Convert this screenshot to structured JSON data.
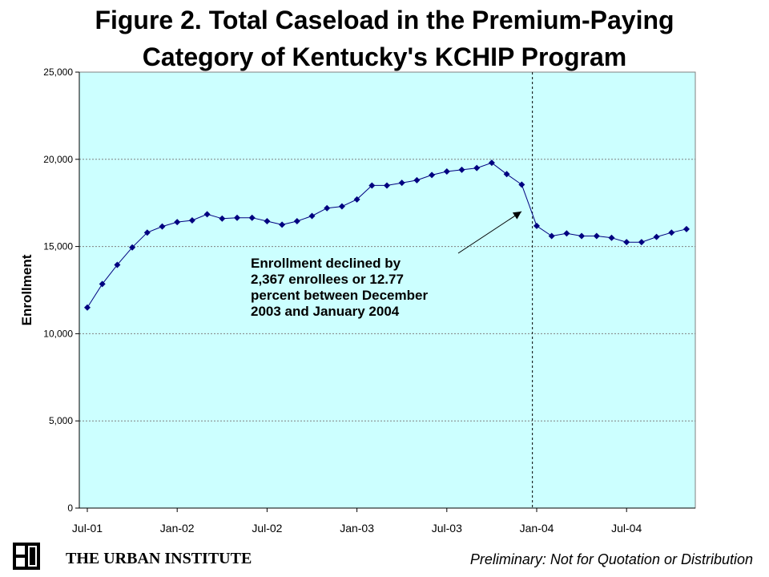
{
  "page": {
    "title_line1": "Figure 2. Total Caseload in the Premium-Paying",
    "title_line2": "Category of Kentucky's KCHIP Program",
    "footer_brand": "THE URBAN INSTITUTE",
    "footer_note": "Preliminary: Not for Quotation or Distribution"
  },
  "colors": {
    "plot_bg": "#ccffff",
    "series": "#000080",
    "grid": "#808080",
    "footer_brand_bg": "#ffffff"
  },
  "chart_data": {
    "type": "line",
    "title": "Figure 2. Total Caseload in the Premium-Paying Category of Kentucky's KCHIP Program",
    "xlabel": "",
    "ylabel": "Enrollment",
    "ylim": [
      0,
      25000
    ],
    "yticks": [
      "0",
      "5,000",
      "10,000",
      "15,000",
      "20,000",
      "25,000"
    ],
    "ytick_values": [
      0,
      5000,
      10000,
      15000,
      20000,
      25000
    ],
    "xtick_labels": [
      "Jul-01",
      "Jan-02",
      "Jul-02",
      "Jan-03",
      "Jul-03",
      "Jan-04",
      "Jul-04"
    ],
    "x": [
      "Jul-01",
      "Aug-01",
      "Sep-01",
      "Oct-01",
      "Nov-01",
      "Dec-01",
      "Jan-02",
      "Feb-02",
      "Mar-02",
      "Apr-02",
      "May-02",
      "Jun-02",
      "Jul-02",
      "Aug-02",
      "Sep-02",
      "Oct-02",
      "Nov-02",
      "Dec-02",
      "Jan-03",
      "Feb-03",
      "Mar-03",
      "Apr-03",
      "May-03",
      "Jun-03",
      "Jul-03",
      "Aug-03",
      "Sep-03",
      "Oct-03",
      "Nov-03",
      "Dec-03",
      "Jan-04",
      "Feb-04",
      "Mar-04",
      "Apr-04",
      "May-04",
      "Jun-04",
      "Jul-04",
      "Aug-04",
      "Sep-04",
      "Oct-04",
      "Nov-04"
    ],
    "series": [
      {
        "values": [
          11500,
          12850,
          13950,
          14950,
          15800,
          16150,
          16400,
          16500,
          16850,
          16600,
          16650,
          16650,
          16450,
          16250,
          16450,
          16750,
          17200,
          17300,
          17700,
          18500,
          18500,
          18650,
          18800,
          19100,
          19300,
          19400,
          19500,
          19800,
          19150,
          18550,
          16180,
          15600,
          15750,
          15600,
          15600,
          15500,
          15250,
          15250,
          15550,
          15800,
          16000
        ]
      }
    ],
    "grid": true,
    "vertical_marker_between": [
      "Dec-03",
      "Jan-04"
    ],
    "annotation": {
      "lines": [
        "Enrollment declined by",
        "2,367 enrollees or 12.77",
        "percent between December",
        "2003 and January 2004"
      ],
      "points_to": "Jan-04"
    }
  }
}
